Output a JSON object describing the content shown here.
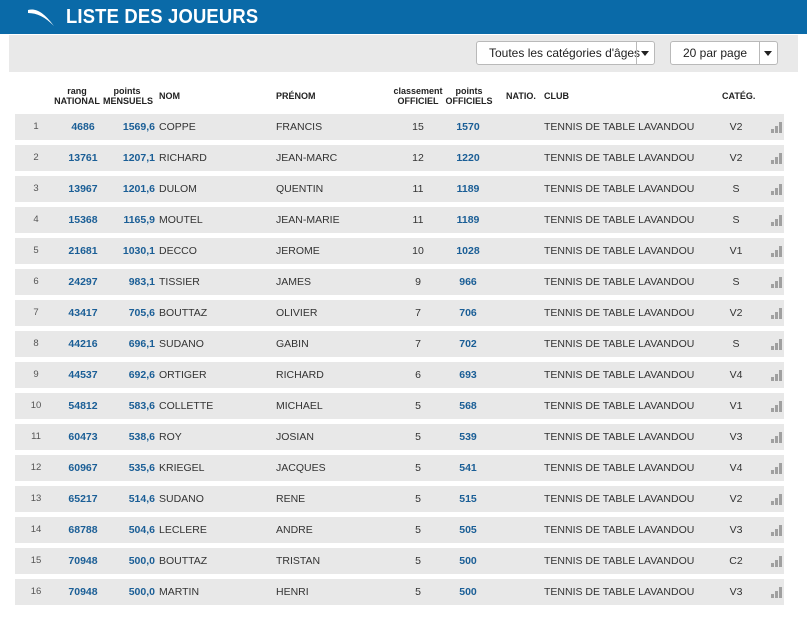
{
  "header": {
    "title": "LISTE DES JOUEURS",
    "logo_icon": "swoosh-logo-icon",
    "background_color": "#0a6aa8"
  },
  "filters": {
    "age_category": "Toutes les catégories d'âges",
    "per_page": "20 par page"
  },
  "table": {
    "columns": {
      "rang": "rang",
      "national": "NATIONAL",
      "points": "points",
      "mensuels": "MENSUELS",
      "nom": "NOM",
      "prenom": "PRÉNOM",
      "classement": "classement",
      "officiel": "OFFICIEL",
      "points2": "points",
      "officiels": "OFFICIELS",
      "natio": "NATIO.",
      "club": "CLUB",
      "categ": "CATÉG."
    },
    "rows": [
      {
        "idx": "1",
        "rang": "4686",
        "points": "1569,6",
        "nom": "COPPE",
        "prenom": "FRANCIS",
        "classement": "15",
        "officiels": "1570",
        "club": "TENNIS DE TABLE LAVANDOU",
        "categ": "V2"
      },
      {
        "idx": "2",
        "rang": "13761",
        "points": "1207,1",
        "nom": "RICHARD",
        "prenom": "JEAN-MARC",
        "classement": "12",
        "officiels": "1220",
        "club": "TENNIS DE TABLE LAVANDOU",
        "categ": "V2"
      },
      {
        "idx": "3",
        "rang": "13967",
        "points": "1201,6",
        "nom": "DULOM",
        "prenom": "QUENTIN",
        "classement": "11",
        "officiels": "1189",
        "club": "TENNIS DE TABLE LAVANDOU",
        "categ": "S"
      },
      {
        "idx": "4",
        "rang": "15368",
        "points": "1165,9",
        "nom": "MOUTEL",
        "prenom": "JEAN-MARIE",
        "classement": "11",
        "officiels": "1189",
        "club": "TENNIS DE TABLE LAVANDOU",
        "categ": "S"
      },
      {
        "idx": "5",
        "rang": "21681",
        "points": "1030,1",
        "nom": "DECCO",
        "prenom": "JEROME",
        "classement": "10",
        "officiels": "1028",
        "club": "TENNIS DE TABLE LAVANDOU",
        "categ": "V1"
      },
      {
        "idx": "6",
        "rang": "24297",
        "points": "983,1",
        "nom": "TISSIER",
        "prenom": "JAMES",
        "classement": "9",
        "officiels": "966",
        "club": "TENNIS DE TABLE LAVANDOU",
        "categ": "S"
      },
      {
        "idx": "7",
        "rang": "43417",
        "points": "705,6",
        "nom": "BOUTTAZ",
        "prenom": "OLIVIER",
        "classement": "7",
        "officiels": "706",
        "club": "TENNIS DE TABLE LAVANDOU",
        "categ": "V2"
      },
      {
        "idx": "8",
        "rang": "44216",
        "points": "696,1",
        "nom": "SUDANO",
        "prenom": "GABIN",
        "classement": "7",
        "officiels": "702",
        "club": "TENNIS DE TABLE LAVANDOU",
        "categ": "S"
      },
      {
        "idx": "9",
        "rang": "44537",
        "points": "692,6",
        "nom": "ORTIGER",
        "prenom": "RICHARD",
        "classement": "6",
        "officiels": "693",
        "club": "TENNIS DE TABLE LAVANDOU",
        "categ": "V4"
      },
      {
        "idx": "10",
        "rang": "54812",
        "points": "583,6",
        "nom": "COLLETTE",
        "prenom": "MICHAEL",
        "classement": "5",
        "officiels": "568",
        "club": "TENNIS DE TABLE LAVANDOU",
        "categ": "V1"
      },
      {
        "idx": "11",
        "rang": "60473",
        "points": "538,6",
        "nom": "ROY",
        "prenom": "JOSIAN",
        "classement": "5",
        "officiels": "539",
        "club": "TENNIS DE TABLE LAVANDOU",
        "categ": "V3"
      },
      {
        "idx": "12",
        "rang": "60967",
        "points": "535,6",
        "nom": "KRIEGEL",
        "prenom": "JACQUES",
        "classement": "5",
        "officiels": "541",
        "club": "TENNIS DE TABLE LAVANDOU",
        "categ": "V4"
      },
      {
        "idx": "13",
        "rang": "65217",
        "points": "514,6",
        "nom": "SUDANO",
        "prenom": "RENE",
        "classement": "5",
        "officiels": "515",
        "club": "TENNIS DE TABLE LAVANDOU",
        "categ": "V2"
      },
      {
        "idx": "14",
        "rang": "68788",
        "points": "504,6",
        "nom": "LECLERE",
        "prenom": "ANDRE",
        "classement": "5",
        "officiels": "505",
        "club": "TENNIS DE TABLE LAVANDOU",
        "categ": "V3"
      },
      {
        "idx": "15",
        "rang": "70948",
        "points": "500,0",
        "nom": "BOUTTAZ",
        "prenom": "TRISTAN",
        "classement": "5",
        "officiels": "500",
        "club": "TENNIS DE TABLE LAVANDOU",
        "categ": "C2"
      },
      {
        "idx": "16",
        "rang": "70948",
        "points": "500,0",
        "nom": "MARTIN",
        "prenom": "HENRI",
        "classement": "5",
        "officiels": "500",
        "club": "TENNIS DE TABLE LAVANDOU",
        "categ": "V3"
      }
    ]
  },
  "row_icon": "stats-bars-icon",
  "colors": {
    "accent_blue": "#1a5e96",
    "row_background": "#e8e8e8",
    "filter_background": "#e9e9e9"
  }
}
